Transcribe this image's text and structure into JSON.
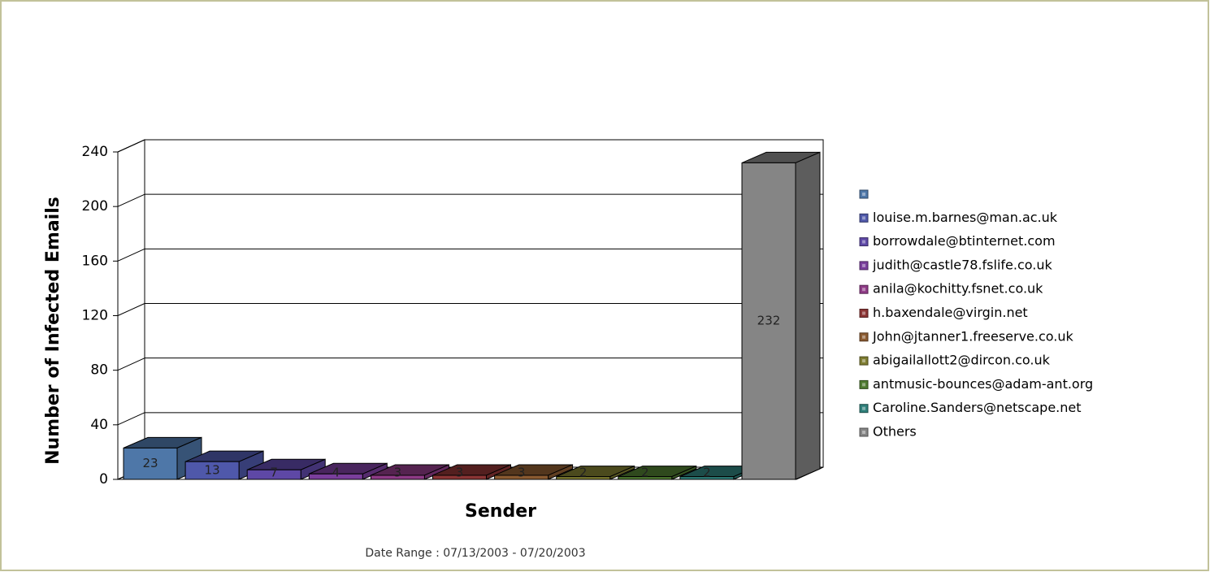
{
  "chart_data": {
    "type": "bar3d",
    "x_label": "Sender",
    "y_label": "Number of Infected Emails",
    "footer": "Date Range : 07/13/2003 - 07/20/2003",
    "categories": [
      null,
      "louise.m.barnes@man.ac.uk",
      "borrowdale@btinternet.com",
      "judith@castle78.fslife.co.uk",
      "anila@kochitty.fsnet.co.uk",
      "h.baxendale@virgin.net",
      "John@jtanner1.freeserve.co.uk",
      "abigailallott2@dircon.co.uk",
      "antmusic-bounces@adam-ant.org",
      "Caroline.Sanders@netscape.net",
      "Others"
    ],
    "values": [
      23,
      13,
      7,
      4,
      3,
      3,
      3,
      2,
      2,
      2,
      232
    ],
    "colors": [
      "#4e77a8",
      "#4f58aa",
      "#5e48a6",
      "#7a3e9c",
      "#8e3a86",
      "#8a3434",
      "#8a5a30",
      "#7d7c30",
      "#4e7a30",
      "#2e7f7a",
      "#858585"
    ],
    "ylim": [
      0,
      240
    ],
    "yticks": [
      0,
      40,
      80,
      120,
      160,
      200,
      240
    ],
    "grid": true
  }
}
